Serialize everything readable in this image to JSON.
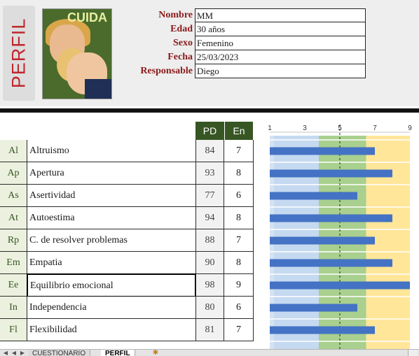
{
  "header": {
    "tab_label": "PERFIL",
    "cover_title": "CUIDA"
  },
  "info": {
    "rows": [
      {
        "label": "Nombre",
        "value": "MM"
      },
      {
        "label": "Edad",
        "value": "30 años"
      },
      {
        "label": "Sexo",
        "value": "Femenino"
      },
      {
        "label": "Fecha",
        "value": "25/03/2023"
      },
      {
        "label": "Responsable",
        "value": "Diego"
      }
    ]
  },
  "table": {
    "headers": {
      "pd": "PD",
      "en": "En"
    },
    "rows": [
      {
        "code": "Al",
        "name": "Altruismo",
        "pd": "84",
        "en": "7"
      },
      {
        "code": "Ap",
        "name": "Apertura",
        "pd": "93",
        "en": "8"
      },
      {
        "code": "As",
        "name": "Asertividad",
        "pd": "77",
        "en": "6"
      },
      {
        "code": "At",
        "name": "Autoestima",
        "pd": "94",
        "en": "8"
      },
      {
        "code": "Rp",
        "name": "C. de resolver problemas",
        "pd": "88",
        "en": "7"
      },
      {
        "code": "Em",
        "name": "Empatia",
        "pd": "90",
        "en": "8"
      },
      {
        "code": "Ee",
        "name": "Equilibrio emocional",
        "pd": "98",
        "en": "9"
      },
      {
        "code": "In",
        "name": "Independencia",
        "pd": "80",
        "en": "6"
      },
      {
        "code": "Fl",
        "name": "Flexibilidad",
        "pd": "81",
        "en": "7"
      }
    ]
  },
  "chart_data": {
    "type": "bar",
    "orientation": "horizontal",
    "xlim": [
      1,
      9
    ],
    "x_ticks": [
      "1",
      "3",
      "5",
      "7",
      "9"
    ],
    "reference_line": 5,
    "bands": [
      {
        "from": 1,
        "to": 3.8,
        "color": "#c5d9f1"
      },
      {
        "from": 3.8,
        "to": 6.5,
        "color": "#a9d08e"
      },
      {
        "from": 6.5,
        "to": 9,
        "color": "#ffe699"
      }
    ],
    "categories": [
      "Al",
      "Ap",
      "As",
      "At",
      "Rp",
      "Em",
      "Ee",
      "In",
      "Fl"
    ],
    "values": [
      7,
      8,
      6,
      8,
      7,
      8,
      9,
      6,
      7
    ],
    "bar_color": "#4472c4"
  },
  "sheets": {
    "tabs": [
      "CUESTIONARIO",
      "PERFIL"
    ],
    "active": "PERFIL"
  }
}
